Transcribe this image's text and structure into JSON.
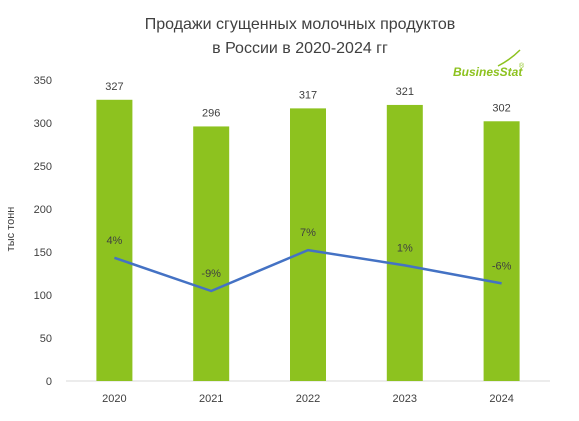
{
  "chart_data": {
    "type": "bar",
    "title_lines": [
      "Продажи сгущенных молочных продуктов",
      "в России в 2020-2024 гг"
    ],
    "categories": [
      "2020",
      "2021",
      "2022",
      "2023",
      "2024"
    ],
    "series": [
      {
        "values": [
          327,
          296,
          317,
          321,
          302
        ],
        "labels": [
          "327",
          "296",
          "317",
          "321",
          "302"
        ],
        "color": "#8dc21f"
      },
      {
        "type": "line",
        "values": [
          4,
          -9,
          7,
          1,
          -6
        ],
        "labels": [
          "4%",
          "-9%",
          "7%",
          "1%",
          "-6%"
        ],
        "color": "#4472c4"
      }
    ],
    "ylabel": "тыс тонн",
    "ylim": [
      0,
      350
    ],
    "yticks": [
      0,
      50,
      100,
      150,
      200,
      250,
      300,
      350
    ],
    "grid": false,
    "legend": "none"
  },
  "logo": {
    "text": "BusinesStat",
    "mark": "®",
    "color": "#8dc21f"
  }
}
